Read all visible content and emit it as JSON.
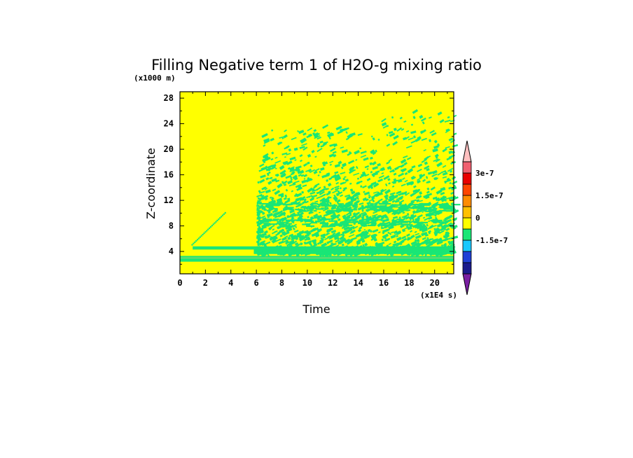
{
  "chart_data": {
    "type": "heatmap",
    "title": "Filling Negative term 1 of H2O-g mixing ratio",
    "xlabel": "Time",
    "x_unit": "(x1E4 s)",
    "ylabel": "Z-coordinate",
    "y_unit": "(x1000 m)",
    "xlim": [
      0,
      21.5
    ],
    "ylim": [
      0.5,
      29
    ],
    "x_ticks": [
      "0",
      "2",
      "4",
      "6",
      "8",
      "10",
      "12",
      "14",
      "16",
      "18",
      "20"
    ],
    "y_ticks": [
      "4",
      "8",
      "12",
      "16",
      "20",
      "24",
      "28"
    ],
    "x_tick_values": [
      0,
      2,
      4,
      6,
      8,
      10,
      12,
      14,
      16,
      18,
      20
    ],
    "y_tick_values": [
      4,
      8,
      12,
      16,
      20,
      24,
      28
    ],
    "background_level": "0",
    "colorbar": {
      "colors": [
        "#7a1fa2",
        "#1a1a8c",
        "#1f3fd6",
        "#19c8ff",
        "#19e676",
        "#ffff00",
        "#ffc000",
        "#ff8c00",
        "#ff4500",
        "#e80000",
        "#f06070",
        "#ffc0c0"
      ],
      "tick_labels": [
        "-1.5e-7",
        "0",
        "1.5e-7",
        "3e-7"
      ],
      "tick_levels": [
        3,
        5,
        7,
        9
      ],
      "extend": "both"
    },
    "regions": [
      {
        "x": [
          0,
          21.5
        ],
        "y": [
          2.4,
          3.3
        ],
        "level": "green",
        "desc": "persistent near-surface band"
      },
      {
        "x": [
          1,
          5.8
        ],
        "y": [
          4.3,
          4.8
        ],
        "level": "green",
        "desc": "thin layer"
      },
      {
        "x": [
          0.9,
          3.5
        ],
        "y": [
          5,
          10
        ],
        "level": "green",
        "desc": "early diagonal streak"
      },
      {
        "x": [
          6,
          21.5
        ],
        "y": [
          3.5,
          26
        ],
        "level": "green",
        "desc": "scattered patches after t=6"
      }
    ]
  }
}
